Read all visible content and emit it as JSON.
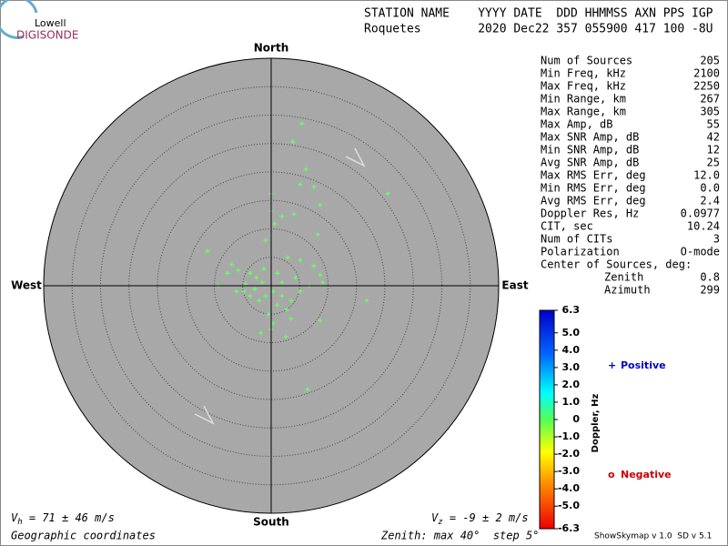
{
  "logo": {
    "top": "Lowell",
    "bottom": "DIGISONDE"
  },
  "header": {
    "line1": "STATION NAME    YYYY DATE  DDD HHMMSS AXN PPS IGP",
    "line2": "Roquetes        2020 Dec22 357 055900 417 100 -8U"
  },
  "stats": {
    "rows": [
      [
        "Num of Sources",
        "205"
      ],
      [
        "Min Freq, kHz",
        "2100"
      ],
      [
        "Max Freq, kHz",
        "2250"
      ],
      [
        "Min Range, km",
        "267"
      ],
      [
        "Max Range, km",
        "305"
      ],
      [
        "Max Amp, dB",
        "55"
      ],
      [
        "Max SNR Amp, dB",
        "42"
      ],
      [
        "Min SNR Amp, dB",
        "12"
      ],
      [
        "Avg SNR Amp, dB",
        "25"
      ],
      [
        "Max RMS Err, deg",
        "12.0"
      ],
      [
        "Min RMS Err, deg",
        "0.0"
      ],
      [
        "Avg RMS Err, deg",
        "2.4"
      ],
      [
        "Doppler Res, Hz",
        "0.0977"
      ],
      [
        "CIT, sec",
        "10.24"
      ],
      [
        "Num of CITs",
        "3"
      ],
      [
        "Polarization",
        "O-mode"
      ],
      [
        "Center of Sources, deg:",
        ""
      ]
    ],
    "center": [
      [
        "Zenith",
        "0.8"
      ],
      [
        "Azimuth",
        "299"
      ]
    ]
  },
  "chart_data": {
    "type": "scatter",
    "color": "#66ff66",
    "directions": {
      "north": "North",
      "south": "South",
      "east": "East",
      "west": "West"
    },
    "rlim": [
      0,
      40
    ],
    "rticks": [
      5,
      10,
      15,
      20,
      25,
      30,
      35
    ],
    "x": [
      5.4,
      3.8,
      6.1,
      5.1,
      7.5,
      20.5,
      0,
      8.6,
      0,
      1.9,
      4.0,
      0.6,
      8.2,
      -11.2,
      -1,
      2.9,
      5.1,
      -6.9,
      -5.8,
      -3.7,
      -2.6,
      -1.6,
      -4.5,
      -9.3,
      -7.7,
      7.5,
      8.6,
      6.7,
      9.1,
      16.8,
      0.3,
      1.9,
      3.5,
      1.1,
      2.7,
      -0.5,
      -2.1,
      -3.7,
      -4.8,
      0.3,
      3.5,
      8.6,
      -1.8,
      2.6,
      0,
      6.4,
      -1.3,
      1.1,
      4.3,
      -2.9,
      1.9,
      -1,
      5.1,
      -6.1
    ],
    "y": [
      28.5,
      25.3,
      20.5,
      17.8,
      17.4,
      16.2,
      16.2,
      14.2,
      13.1,
      12.2,
      12.6,
      10.9,
      9.0,
      6.1,
      8,
      5,
      4.5,
      3.7,
      2.7,
      2.2,
      1.4,
      0.6,
      0.3,
      0,
      2.2,
      3.5,
      1.9,
      0,
      0.6,
      -2.6,
      -1,
      -1.8,
      -2.6,
      -3.4,
      -4.2,
      -5,
      -2.6,
      -1.8,
      -1,
      -6.6,
      -5.8,
      -6.1,
      -8.3,
      -9,
      -7.7,
      -18.2,
      3,
      2.2,
      1.4,
      -0.6,
      0.6,
      -1.8,
      -1,
      -1
    ],
    "colorbar": {
      "label": "Doppler, Hz",
      "lim": [
        -6.3,
        6.3
      ],
      "ticks": [
        6.3,
        {
          "value": 5,
          "label": "5.0"
        },
        {
          "value": 4,
          "label": "4.0"
        },
        {
          "value": 3,
          "label": "3.0"
        },
        {
          "value": 2,
          "label": "2.0"
        },
        {
          "value": 1,
          "label": "1.0"
        },
        0,
        {
          "value": -1,
          "label": "-1.0"
        },
        {
          "value": -2,
          "label": "-2.0"
        },
        {
          "value": -3,
          "label": "-3.0"
        },
        {
          "value": -4,
          "label": "-4.0"
        },
        {
          "value": -5,
          "label": "-5.0"
        },
        -6.3
      ]
    },
    "legend": [
      {
        "symbol": "+",
        "name": "Positive",
        "color": "#0000cc"
      },
      {
        "symbol": "o",
        "name": "Negative",
        "color": "#cc0000"
      }
    ]
  },
  "footer": {
    "vh": {
      "symbol": "V",
      "sub": "h",
      "text": " = 71 ± 46 m/s"
    },
    "vz": {
      "symbol": "V",
      "sub": "z",
      "text": " = -9 ± 2 m/s"
    },
    "coords": "Geographic coordinates",
    "zenith": "Zenith: max 40°  step 5°",
    "version": "ShowSkymap v 1.0  SD v 5.1"
  }
}
